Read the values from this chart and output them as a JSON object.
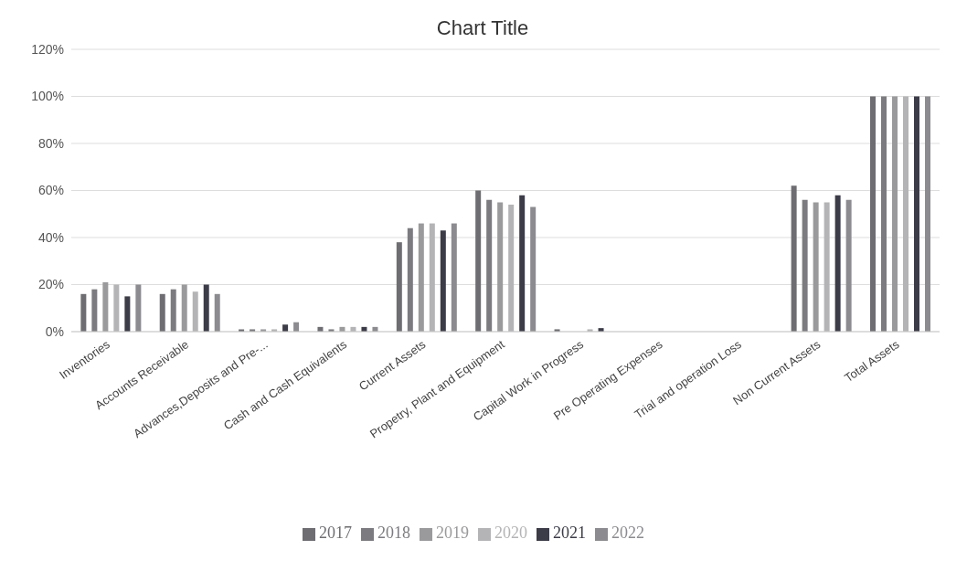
{
  "chart_data": {
    "type": "bar",
    "title": "Chart Title",
    "categories": [
      "Inventories",
      "Accounts Receivable",
      "Advances,Deposits and Pre-...",
      "Cash and Cash Equivalents",
      "Current Assets",
      "Propetry, Plant and Equipment",
      "Capital Work in Progress",
      "Pre Operating Expenses",
      "Trial and operation Loss",
      "Non Current Assets",
      "Total Assets"
    ],
    "series": [
      {
        "name": "2017",
        "color": "#6e6e72",
        "values": [
          16,
          16,
          1,
          2,
          38,
          60,
          1,
          0,
          0,
          62,
          100
        ]
      },
      {
        "name": "2018",
        "color": "#7c7c80",
        "values": [
          18,
          18,
          1,
          1,
          44,
          56,
          0,
          0,
          0,
          56,
          100
        ]
      },
      {
        "name": "2019",
        "color": "#9a9a9c",
        "values": [
          21,
          20,
          1,
          2,
          46,
          55,
          0,
          0,
          0,
          55,
          100
        ]
      },
      {
        "name": "2020",
        "color": "#b4b4b6",
        "values": [
          20,
          17,
          1,
          2,
          46,
          54,
          1,
          0,
          0,
          55,
          100
        ]
      },
      {
        "name": "2021",
        "color": "#3c3c48",
        "values": [
          15,
          20,
          3,
          2,
          43,
          58,
          1.5,
          0,
          0,
          58,
          100
        ]
      },
      {
        "name": "2022",
        "color": "#8c8c90",
        "values": [
          20,
          16,
          4,
          2,
          46,
          53,
          0,
          0,
          0,
          56,
          100
        ]
      }
    ],
    "ylim": [
      0,
      120
    ],
    "yticks": [
      {
        "value": 0,
        "label": "0%"
      },
      {
        "value": 20,
        "label": "20%"
      },
      {
        "value": 40,
        "label": "40%"
      },
      {
        "value": 60,
        "label": "60%"
      },
      {
        "value": 80,
        "label": "80%"
      },
      {
        "value": 100,
        "label": "100%"
      },
      {
        "value": 120,
        "label": "120%"
      }
    ],
    "grid": "y",
    "legend": "bottom"
  }
}
